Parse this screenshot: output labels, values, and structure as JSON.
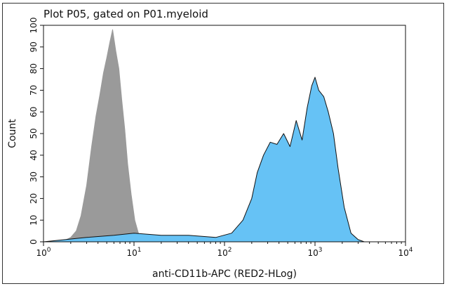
{
  "chart_data": {
    "type": "area",
    "title": "Plot P05, gated on P01.myeloid",
    "xlabel": "anti-CD11b-APC (RED2-HLog)",
    "ylabel": "Count",
    "xscale": "log",
    "xlim": [
      1,
      10000
    ],
    "ylim": [
      0,
      100
    ],
    "x_ticks": [
      {
        "base": "10",
        "exp": "0"
      },
      {
        "base": "10",
        "exp": "1"
      },
      {
        "base": "10",
        "exp": "2"
      },
      {
        "base": "10",
        "exp": "3"
      },
      {
        "base": "10",
        "exp": "4"
      }
    ],
    "x_tick_values": [
      1,
      10,
      100,
      1000,
      10000
    ],
    "y_ticks": [
      "0",
      "10",
      "20",
      "30",
      "40",
      "50",
      "60",
      "70",
      "80",
      "90",
      "100"
    ],
    "y_tick_values": [
      0,
      10,
      20,
      30,
      40,
      50,
      60,
      70,
      80,
      90,
      100
    ],
    "grid": false,
    "legend": "none",
    "series": [
      {
        "color": "#9a9a9a",
        "edge": "#9a9a9a",
        "x": [
          1.6,
          2.0,
          2.3,
          2.6,
          3.0,
          3.4,
          3.8,
          4.2,
          4.6,
          5.0,
          5.4,
          5.8,
          6.3,
          6.8,
          7.3,
          7.9,
          8.5,
          9.3,
          10.2,
          11.2,
          12.5,
          14
        ],
        "values": [
          0,
          2,
          5,
          12,
          26,
          44,
          58,
          68,
          78,
          85,
          92,
          98,
          88,
          80,
          66,
          52,
          36,
          22,
          10,
          4,
          1,
          0
        ]
      },
      {
        "color": "#66c2f5",
        "edge": "#111111",
        "x": [
          1,
          3,
          6,
          10,
          20,
          40,
          80,
          120,
          160,
          200,
          230,
          270,
          320,
          380,
          450,
          530,
          620,
          720,
          820,
          920,
          1000,
          1100,
          1250,
          1400,
          1600,
          1800,
          2100,
          2500,
          3000,
          3500
        ],
        "values": [
          0,
          2,
          3,
          4,
          3,
          3,
          2,
          4,
          10,
          20,
          32,
          40,
          46,
          45,
          50,
          44,
          56,
          47,
          62,
          72,
          76,
          70,
          67,
          60,
          50,
          34,
          16,
          4,
          1,
          0
        ]
      }
    ]
  }
}
